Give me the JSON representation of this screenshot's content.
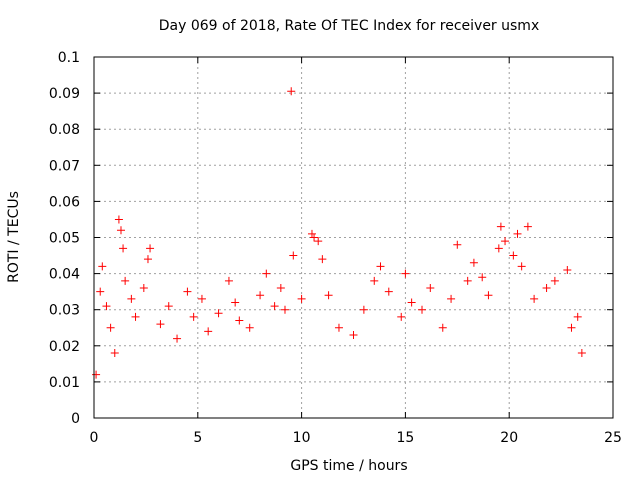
{
  "chart_data": {
    "type": "scatter",
    "title": "Day 069 of 2018, Rate Of TEC Index for receiver usmx",
    "xlabel": "GPS time / hours",
    "ylabel": "ROTI / TECUs",
    "xlim": [
      0,
      25
    ],
    "ylim": [
      0,
      0.1
    ],
    "x_ticks": [
      "0",
      "5",
      "10",
      "15",
      "20",
      "25"
    ],
    "y_ticks": [
      "0",
      "0.01",
      "0.02",
      "0.03",
      "0.04",
      "0.05",
      "0.06",
      "0.07",
      "0.08",
      "0.09",
      "0.1"
    ],
    "grid": true,
    "marker": "+",
    "series_color": "#ff0000",
    "points": [
      [
        0.1,
        0.012
      ],
      [
        0.3,
        0.035
      ],
      [
        0.4,
        0.042
      ],
      [
        0.6,
        0.031
      ],
      [
        0.8,
        0.025
      ],
      [
        1.0,
        0.018
      ],
      [
        1.2,
        0.055
      ],
      [
        1.3,
        0.052
      ],
      [
        1.4,
        0.047
      ],
      [
        1.5,
        0.038
      ],
      [
        1.8,
        0.033
      ],
      [
        2.0,
        0.028
      ],
      [
        2.4,
        0.036
      ],
      [
        2.6,
        0.044
      ],
      [
        2.7,
        0.047
      ],
      [
        3.2,
        0.026
      ],
      [
        3.6,
        0.031
      ],
      [
        4.0,
        0.022
      ],
      [
        4.5,
        0.035
      ],
      [
        4.8,
        0.028
      ],
      [
        5.2,
        0.033
      ],
      [
        5.5,
        0.024
      ],
      [
        6.0,
        0.029
      ],
      [
        6.5,
        0.038
      ],
      [
        6.8,
        0.032
      ],
      [
        7.0,
        0.027
      ],
      [
        7.5,
        0.025
      ],
      [
        8.0,
        0.034
      ],
      [
        8.3,
        0.04
      ],
      [
        8.7,
        0.031
      ],
      [
        9.0,
        0.036
      ],
      [
        9.2,
        0.03
      ],
      [
        9.5,
        0.0905
      ],
      [
        9.6,
        0.045
      ],
      [
        10.0,
        0.033
      ],
      [
        10.5,
        0.051
      ],
      [
        10.6,
        0.05
      ],
      [
        10.8,
        0.049
      ],
      [
        11.0,
        0.044
      ],
      [
        11.3,
        0.034
      ],
      [
        11.8,
        0.025
      ],
      [
        12.5,
        0.023
      ],
      [
        13.0,
        0.03
      ],
      [
        13.5,
        0.038
      ],
      [
        13.8,
        0.042
      ],
      [
        14.2,
        0.035
      ],
      [
        14.8,
        0.028
      ],
      [
        15.0,
        0.04
      ],
      [
        15.3,
        0.032
      ],
      [
        15.8,
        0.03
      ],
      [
        16.2,
        0.036
      ],
      [
        16.8,
        0.025
      ],
      [
        17.2,
        0.033
      ],
      [
        17.5,
        0.048
      ],
      [
        18.0,
        0.038
      ],
      [
        18.3,
        0.043
      ],
      [
        18.7,
        0.039
      ],
      [
        19.0,
        0.034
      ],
      [
        19.5,
        0.047
      ],
      [
        19.6,
        0.053
      ],
      [
        19.8,
        0.049
      ],
      [
        20.2,
        0.045
      ],
      [
        20.4,
        0.051
      ],
      [
        20.6,
        0.042
      ],
      [
        20.9,
        0.053
      ],
      [
        21.2,
        0.033
      ],
      [
        21.8,
        0.036
      ],
      [
        22.2,
        0.038
      ],
      [
        22.8,
        0.041
      ],
      [
        23.0,
        0.025
      ],
      [
        23.3,
        0.028
      ],
      [
        23.5,
        0.018
      ]
    ]
  }
}
